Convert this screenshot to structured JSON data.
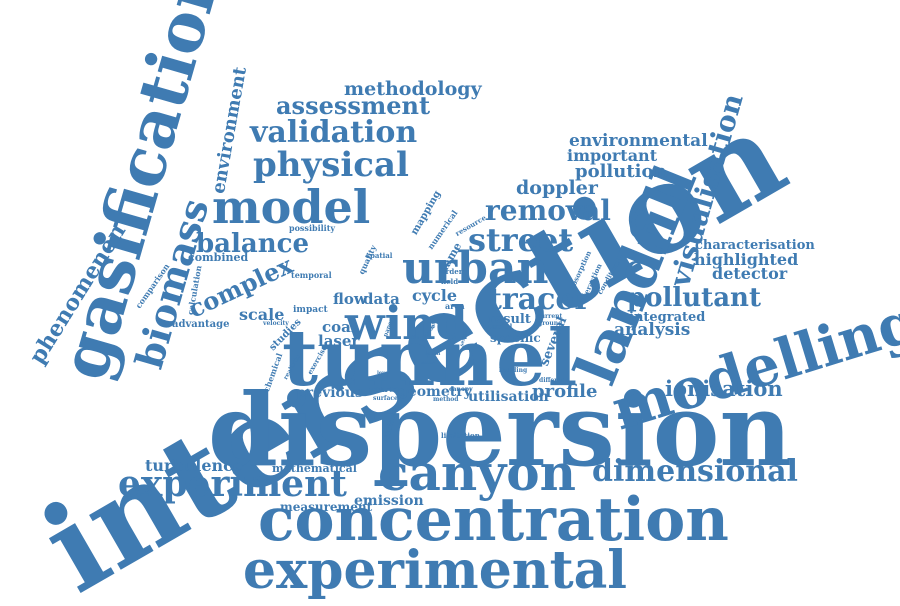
{
  "color": "#3f7bb2",
  "words": [
    "intersection",
    "dispersion",
    "tunnel",
    "concentration",
    "experimental",
    "gasification",
    "landfill",
    "modelling",
    "canyon",
    "urban",
    "wind",
    "experiment",
    "model",
    "biomass",
    "dimensional",
    "street",
    "tracer",
    "removal",
    "visualisation",
    "physical",
    "validation",
    "balance",
    "pollutant",
    "assessment",
    "phenomenon",
    "complex",
    "ionisation",
    "methodology",
    "environment",
    "environmental",
    "important",
    "pollution",
    "doppler",
    "analysis",
    "highlighted",
    "detector",
    "characterisation",
    "integrated",
    "profile",
    "turbulence",
    "previous",
    "geometry",
    "utilisation",
    "emission",
    "measurement",
    "mathematical",
    "cycle",
    "flow",
    "data",
    "laser",
    "coal",
    "scale",
    "result",
    "specific",
    "several",
    "combined",
    "advantage",
    "studies",
    "chemical",
    "calculation",
    "comparison",
    "temporal",
    "possibility",
    "impact",
    "mapping",
    "numerical",
    "flame",
    "quality",
    "spatial",
    "resource",
    "order",
    "field",
    "absorption",
    "interaction",
    "condition",
    "source",
    "surface",
    "method",
    "canopy",
    "area",
    "useful",
    "current",
    "ground",
    "building",
    "different",
    "efficiency",
    "limitation",
    "exercise",
    "realistic",
    "velocity",
    "level",
    "paper",
    "life",
    "include",
    "fire",
    "mean",
    "state",
    "series"
  ]
}
